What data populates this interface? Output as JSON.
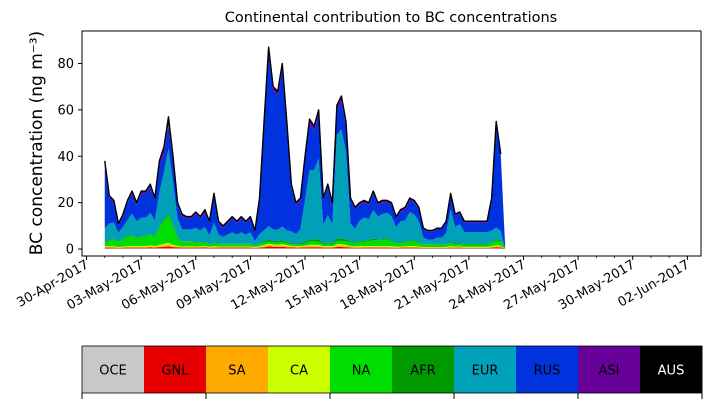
{
  "chart_data": {
    "type": "area",
    "title": "Continental contribution to BC concentrations",
    "ylabel": "BC concentration (ng m⁻³)",
    "xlabel": "",
    "date_ticks": [
      "30-Apr-2017",
      "03-May-2017",
      "06-May-2017",
      "09-May-2017",
      "12-May-2017",
      "15-May-2017",
      "18-May-2017",
      "21-May-2017",
      "24-May-2017",
      "27-May-2017",
      "30-May-2017",
      "02-Jun-2017"
    ],
    "x_start": "2017-05-01",
    "x_range": [
      "2017-04-29T18:00",
      "2017-06-02T18:00"
    ],
    "ylim": [
      -3,
      94
    ],
    "y_ticks": [
      0,
      20,
      40,
      60,
      80
    ],
    "x": [
      "2017-05-01T00:00",
      "2017-05-01T06:00",
      "2017-05-01T12:00",
      "2017-05-01T18:00",
      "2017-05-02T00:00",
      "2017-05-02T06:00",
      "2017-05-02T12:00",
      "2017-05-02T18:00",
      "2017-05-03T00:00",
      "2017-05-03T06:00",
      "2017-05-03T12:00",
      "2017-05-03T18:00",
      "2017-05-04T00:00",
      "2017-05-04T06:00",
      "2017-05-04T12:00",
      "2017-05-04T18:00",
      "2017-05-05T00:00",
      "2017-05-05T06:00",
      "2017-05-05T12:00",
      "2017-05-05T18:00",
      "2017-05-06T00:00",
      "2017-05-06T06:00",
      "2017-05-06T12:00",
      "2017-05-06T18:00",
      "2017-05-07T00:00",
      "2017-05-07T06:00",
      "2017-05-07T12:00",
      "2017-05-07T18:00",
      "2017-05-08T00:00",
      "2017-05-08T06:00",
      "2017-05-08T12:00",
      "2017-05-08T18:00",
      "2017-05-09T00:00",
      "2017-05-09T06:00",
      "2017-05-09T12:00",
      "2017-05-09T18:00",
      "2017-05-10T00:00",
      "2017-05-10T06:00",
      "2017-05-10T12:00",
      "2017-05-10T18:00",
      "2017-05-11T00:00",
      "2017-05-11T06:00",
      "2017-05-11T12:00",
      "2017-05-11T18:00",
      "2017-05-12T00:00",
      "2017-05-12T06:00",
      "2017-05-12T12:00",
      "2017-05-12T18:00",
      "2017-05-13T00:00",
      "2017-05-13T06:00",
      "2017-05-13T12:00",
      "2017-05-13T18:00",
      "2017-05-14T00:00",
      "2017-05-14T06:00",
      "2017-05-14T12:00",
      "2017-05-14T18:00",
      "2017-05-15T00:00",
      "2017-05-15T06:00",
      "2017-05-15T12:00",
      "2017-05-15T18:00",
      "2017-05-16T00:00",
      "2017-05-16T06:00",
      "2017-05-16T12:00",
      "2017-05-16T18:00",
      "2017-05-17T00:00",
      "2017-05-17T06:00",
      "2017-05-17T12:00",
      "2017-05-17T18:00",
      "2017-05-18T00:00",
      "2017-05-18T06:00",
      "2017-05-18T12:00",
      "2017-05-18T18:00",
      "2017-05-19T00:00",
      "2017-05-19T06:00",
      "2017-05-19T12:00",
      "2017-05-19T18:00",
      "2017-05-20T00:00",
      "2017-05-20T06:00",
      "2017-05-20T12:00",
      "2017-05-20T18:00",
      "2017-05-21T00:00",
      "2017-05-21T06:00",
      "2017-05-21T12:00",
      "2017-05-21T18:00",
      "2017-05-22T00:00",
      "2017-05-22T06:00",
      "2017-05-22T12:00",
      "2017-05-22T18:00",
      "2017-05-23T00:00",
      "2017-05-23T06:00",
      "2017-05-23T12:00",
      "2017-05-23T18:00",
      "2017-05-24T00:00",
      "2017-05-24T06:00",
      "2017-05-24T12:00",
      "2017-05-24T18:00",
      "2017-05-25T00:00",
      "2017-05-25T06:00",
      "2017-05-25T12:00",
      "2017-05-25T18:00",
      "2017-05-26T00:00",
      "2017-05-26T06:00",
      "2017-05-26T12:00",
      "2017-05-26T18:00",
      "2017-05-27T00:00",
      "2017-05-27T06:00",
      "2017-05-27T12:00",
      "2017-05-27T18:00",
      "2017-05-28T00:00",
      "2017-05-28T06:00",
      "2017-05-28T12:00",
      "2017-05-28T18:00",
      "2017-05-29T00:00",
      "2017-05-29T06:00",
      "2017-05-29T12:00",
      "2017-05-29T18:00",
      "2017-05-30T00:00",
      "2017-05-30T06:00",
      "2017-05-30T12:00",
      "2017-05-30T18:00",
      "2017-05-31T00:00",
      "2017-05-31T06:00",
      "2017-05-31T12:00",
      "2017-05-31T18:00",
      "2017-06-01T00:00",
      "2017-06-01T06:00",
      "2017-06-01T12:00",
      "2017-06-01T18:00"
    ],
    "total": [
      38,
      23,
      21,
      11,
      15,
      21,
      25,
      20,
      25,
      25,
      28,
      22,
      38,
      44,
      57,
      40,
      20,
      15,
      14,
      14,
      16,
      14,
      17,
      12,
      24,
      12,
      10,
      12,
      14,
      12,
      14,
      12,
      14,
      8,
      22,
      55,
      87,
      70,
      68,
      80,
      55,
      28,
      20,
      22,
      40,
      56,
      53,
      60,
      22,
      28,
      20,
      62,
      66,
      55,
      22,
      18,
      20,
      21,
      20,
      25,
      20,
      21,
      21,
      20,
      14,
      17,
      18,
      22,
      21,
      18,
      9,
      8,
      8,
      9,
      9,
      12,
      24,
      15,
      16,
      12,
      12,
      12,
      12,
      12,
      12,
      22,
      55,
      41
    ],
    "stack": {
      "OCE": [
        0.3,
        0.3,
        0.3,
        0.3,
        0.3,
        0.3,
        0.3,
        0.3,
        0.3,
        0.3,
        0.3,
        0.3,
        0.3,
        0.3,
        0.3,
        0.3,
        0.3,
        0.3,
        0.3,
        0.3,
        0.3,
        0.3,
        0.3,
        0.3,
        0.3,
        0.3,
        0.3,
        0.3,
        0.3,
        0.3,
        0.3,
        0.3,
        0.3,
        0.3,
        0.3,
        0.3,
        0.3,
        0.3,
        0.3,
        0.3,
        0.3,
        0.3,
        0.3,
        0.3,
        0.3,
        0.3,
        0.3,
        0.3,
        0.3,
        0.3,
        0.3,
        0.3,
        0.3,
        0.3,
        0.3,
        0.3,
        0.3,
        0.3,
        0.3,
        0.3,
        0.3,
        0.3,
        0.3,
        0.3,
        0.3,
        0.3,
        0.3,
        0.3,
        0.3,
        0.3,
        0.3,
        0.3,
        0.3,
        0.3,
        0.3,
        0.3,
        0.3,
        0.3,
        0.3,
        0.3,
        0.3,
        0.3,
        0.3,
        0.3,
        0.3,
        0.3,
        0.3,
        0.3
      ],
      "GNL": [
        0.3,
        0.3,
        0.3,
        0.2,
        0.3,
        0.3,
        0.3,
        0.3,
        0.3,
        0.3,
        0.4,
        0.3,
        0.5,
        0.6,
        0.8,
        0.5,
        0.4,
        0.3,
        0.3,
        0.3,
        0.3,
        0.3,
        0.3,
        0.3,
        0.3,
        0.3,
        0.3,
        0.3,
        0.3,
        0.3,
        0.3,
        0.3,
        0.3,
        0.2,
        0.3,
        0.5,
        0.8,
        0.7,
        0.6,
        0.7,
        0.5,
        0.4,
        0.3,
        0.3,
        0.4,
        0.5,
        0.5,
        0.5,
        0.3,
        0.3,
        0.3,
        0.6,
        0.6,
        0.5,
        0.3,
        0.3,
        0.3,
        0.3,
        0.3,
        0.3,
        0.3,
        0.3,
        0.3,
        0.3,
        0.2,
        0.3,
        0.3,
        0.3,
        0.3,
        0.3,
        0.2,
        0.2,
        0.2,
        0.2,
        0.2,
        0.2,
        0.3,
        0.2,
        0.3,
        0.2,
        0.2,
        0.2,
        0.2,
        0.2,
        0.2,
        0.3,
        0.5,
        0.4
      ],
      "SA": [
        0.4,
        0.3,
        0.3,
        0.2,
        0.3,
        0.3,
        0.4,
        0.3,
        0.4,
        0.4,
        0.5,
        0.4,
        0.6,
        0.8,
        1.0,
        0.6,
        0.4,
        0.3,
        0.3,
        0.3,
        0.3,
        0.3,
        0.3,
        0.3,
        0.4,
        0.3,
        0.3,
        0.3,
        0.3,
        0.3,
        0.3,
        0.3,
        0.3,
        0.2,
        0.3,
        0.5,
        0.7,
        0.6,
        0.6,
        0.6,
        0.5,
        0.4,
        0.3,
        0.3,
        0.4,
        0.6,
        0.6,
        0.6,
        0.3,
        0.4,
        0.3,
        0.6,
        0.7,
        0.6,
        0.4,
        0.3,
        0.4,
        0.4,
        0.4,
        0.4,
        0.4,
        0.4,
        0.4,
        0.4,
        0.3,
        0.3,
        0.3,
        0.4,
        0.4,
        0.3,
        0.2,
        0.2,
        0.2,
        0.2,
        0.2,
        0.2,
        0.4,
        0.3,
        0.3,
        0.2,
        0.2,
        0.2,
        0.2,
        0.2,
        0.2,
        0.3,
        0.5,
        0.4
      ],
      "CA": [
        0.3,
        0.3,
        0.3,
        0.2,
        0.2,
        0.3,
        0.3,
        0.3,
        0.3,
        0.3,
        0.4,
        0.3,
        0.4,
        0.5,
        0.6,
        0.4,
        0.3,
        0.2,
        0.2,
        0.2,
        0.2,
        0.2,
        0.3,
        0.2,
        0.3,
        0.2,
        0.2,
        0.2,
        0.2,
        0.2,
        0.2,
        0.2,
        0.2,
        0.2,
        0.3,
        0.4,
        0.5,
        0.4,
        0.4,
        0.5,
        0.4,
        0.3,
        0.3,
        0.3,
        0.3,
        0.4,
        0.4,
        0.4,
        0.3,
        0.3,
        0.3,
        0.5,
        0.5,
        0.4,
        0.3,
        0.3,
        0.3,
        0.3,
        0.3,
        0.3,
        0.3,
        0.3,
        0.3,
        0.3,
        0.2,
        0.2,
        0.2,
        0.3,
        0.3,
        0.2,
        0.2,
        0.2,
        0.2,
        0.2,
        0.2,
        0.2,
        0.3,
        0.2,
        0.2,
        0.2,
        0.2,
        0.2,
        0.2,
        0.2,
        0.2,
        0.3,
        0.4,
        0.3
      ],
      "NA": [
        1.5,
        2.5,
        3.0,
        2.0,
        3.5,
        4.0,
        4.5,
        3.5,
        4.0,
        4.0,
        5.0,
        4.0,
        7.0,
        10.0,
        12.0,
        8.0,
        3.5,
        2.0,
        2.0,
        2.0,
        2.0,
        1.5,
        1.5,
        1.0,
        1.5,
        1.0,
        1.0,
        1.0,
        1.0,
        1.0,
        1.0,
        1.0,
        1.0,
        0.5,
        1.0,
        1.0,
        1.0,
        1.0,
        1.0,
        1.0,
        1.0,
        0.8,
        0.8,
        0.8,
        1.0,
        1.5,
        1.5,
        1.5,
        1.0,
        1.0,
        1.0,
        1.5,
        1.5,
        1.5,
        1.5,
        1.5,
        2.0,
        2.0,
        2.0,
        2.5,
        2.5,
        2.5,
        3.0,
        2.0,
        1.5,
        1.5,
        1.5,
        2.0,
        2.0,
        1.5,
        1.0,
        1.0,
        1.0,
        1.0,
        1.0,
        1.0,
        1.5,
        1.0,
        1.0,
        1.0,
        1.0,
        1.0,
        1.0,
        1.0,
        1.0,
        1.5,
        2.0,
        2.0
      ],
      "AFR": [
        0.2,
        0.3,
        0.3,
        0.2,
        0.3,
        0.3,
        0.3,
        0.3,
        0.3,
        0.3,
        0.4,
        0.3,
        0.5,
        0.7,
        0.9,
        0.6,
        0.3,
        0.2,
        0.2,
        0.2,
        0.2,
        0.2,
        0.2,
        0.2,
        0.3,
        0.2,
        0.2,
        0.2,
        0.2,
        0.2,
        0.2,
        0.2,
        0.2,
        0.1,
        0.3,
        0.5,
        0.8,
        0.6,
        0.6,
        0.7,
        0.5,
        0.4,
        0.3,
        0.4,
        0.6,
        0.9,
        0.9,
        1.0,
        0.4,
        0.5,
        0.4,
        1.0,
        1.1,
        0.9,
        0.4,
        0.3,
        0.4,
        0.5,
        0.5,
        0.6,
        0.5,
        0.5,
        0.5,
        0.4,
        0.3,
        0.3,
        0.3,
        0.4,
        0.4,
        0.3,
        0.2,
        0.2,
        0.2,
        0.2,
        0.2,
        0.2,
        0.4,
        0.3,
        0.3,
        0.2,
        0.2,
        0.2,
        0.2,
        0.2,
        0.2,
        0.3,
        0.6,
        0.5
      ],
      "EUR": [
        6,
        7,
        7,
        4,
        5,
        7,
        9,
        7,
        8,
        8,
        9,
        7,
        15,
        20,
        28,
        18,
        8,
        5,
        5,
        5,
        6,
        5,
        6,
        4,
        9,
        4,
        3,
        4,
        5,
        4,
        5,
        4,
        5,
        2,
        4,
        5,
        6,
        5,
        5,
        6,
        5,
        5,
        4,
        6,
        18,
        30,
        30,
        35,
        8,
        12,
        8,
        45,
        47,
        38,
        8,
        6,
        9,
        10,
        9,
        12,
        10,
        11,
        11,
        11,
        7,
        9,
        9,
        12,
        11,
        9,
        3,
        2,
        2,
        3,
        3,
        5,
        14,
        7,
        8,
        5,
        5,
        5,
        5,
        5,
        5,
        5,
        5,
        4
      ],
      "RUS": [
        27,
        11,
        8.5,
        3.5,
        4.5,
        7.5,
        8.5,
        7.0,
        10.3,
        10.3,
        11.3,
        8.8,
        11.0,
        8.0,
        10.0,
        9.0,
        5.5,
        5.5,
        4.5,
        4.5,
        6.0,
        5.0,
        6.0,
        5.5,
        12.0,
        5.0,
        4.0,
        5.0,
        6.0,
        5.0,
        6.0,
        5.0,
        6.0,
        4.0,
        14.0,
        46.0,
        76.0,
        61.0,
        59.0,
        69.0,
        46.0,
        19.0,
        12.0,
        12.0,
        17.0,
        20.0,
        17.0,
        19.0,
        10.5,
        12.0,
        8.0,
        11.0,
        12.0,
        11.0,
        10.0,
        8.5,
        7.0,
        6.5,
        6.0,
        7.0,
        5.0,
        5.0,
        4.5,
        5.0,
        4.0,
        4.0,
        4.5,
        5.0,
        5.0,
        5.0,
        3.5,
        3.5,
        3.5,
        3.7,
        3.7,
        4.5,
        6.0,
        4.5,
        4.5,
        4.0,
        4.0,
        4.0,
        4.0,
        4.0,
        4.0,
        13.0,
        44.5,
        32.5
      ],
      "ASI": [
        1.5,
        0.8,
        0.8,
        0.5,
        0.8,
        0.8,
        1.0,
        0.8,
        1.0,
        1.0,
        1.2,
        0.9,
        2.0,
        2.5,
        3.5,
        2.0,
        1.0,
        0.8,
        0.8,
        0.8,
        0.8,
        0.8,
        1.0,
        0.8,
        1.2,
        0.8,
        0.7,
        0.8,
        0.8,
        0.8,
        0.8,
        0.8,
        0.8,
        0.6,
        1.2,
        1.5,
        1.8,
        1.5,
        1.5,
        1.8,
        1.5,
        1.2,
        1.0,
        1.0,
        1.6,
        1.8,
        1.8,
        1.8,
        1.0,
        1.2,
        1.0,
        1.6,
        2.0,
        1.8,
        1.0,
        0.8,
        0.8,
        0.8,
        0.8,
        0.8,
        0.8,
        0.8,
        0.8,
        0.8,
        0.5,
        0.8,
        0.8,
        0.8,
        0.8,
        0.8,
        0.5,
        0.5,
        0.5,
        0.5,
        0.5,
        0.6,
        0.8,
        0.6,
        0.6,
        0.5,
        0.5,
        0.5,
        0.5,
        0.5,
        0.5,
        0.8,
        1.0,
        0.8
      ],
      "AUS": [
        0.5,
        0.2,
        0.2,
        0.1,
        0.2,
        0.2,
        0.2,
        0.2,
        0.2,
        0.2,
        0.2,
        0.2,
        0.3,
        0.3,
        0.4,
        0.3,
        0.2,
        0.1,
        0.1,
        0.1,
        0.1,
        0.1,
        0.1,
        0.1,
        0.2,
        0.1,
        0.1,
        0.1,
        0.1,
        0.1,
        0.1,
        0.1,
        0.1,
        0.1,
        0.2,
        0.3,
        0.4,
        0.3,
        0.3,
        0.4,
        0.3,
        0.2,
        0.2,
        0.2,
        0.2,
        0.3,
        0.3,
        0.3,
        0.2,
        0.2,
        0.2,
        0.3,
        0.3,
        0.3,
        0.2,
        0.2,
        0.2,
        0.2,
        0.2,
        0.2,
        0.2,
        0.2,
        0.2,
        0.2,
        0.1,
        0.2,
        0.2,
        0.2,
        0.2,
        0.2,
        0.1,
        0.1,
        0.1,
        0.1,
        0.1,
        0.1,
        0.2,
        0.1,
        0.1,
        0.1,
        0.1,
        0.1,
        0.1,
        0.1,
        0.1,
        0.2,
        0.2,
        0.2
      ]
    },
    "regions": [
      {
        "code": "OCE",
        "color": "#c8c8c8",
        "text_color": "#000000"
      },
      {
        "code": "GNL",
        "color": "#e60000",
        "text_color": "#000000"
      },
      {
        "code": "SA",
        "color": "#ffaa00",
        "text_color": "#000000"
      },
      {
        "code": "CA",
        "color": "#ccff00",
        "text_color": "#000000"
      },
      {
        "code": "NA",
        "color": "#00dd00",
        "text_color": "#000000"
      },
      {
        "code": "AFR",
        "color": "#009900",
        "text_color": "#000000"
      },
      {
        "code": "EUR",
        "color": "#00a0b8",
        "text_color": "#000000"
      },
      {
        "code": "RUS",
        "color": "#0033dd",
        "text_color": "#000000"
      },
      {
        "code": "ASI",
        "color": "#660099",
        "text_color": "#000000"
      },
      {
        "code": "AUS",
        "color": "#000000",
        "text_color": "#ffffff"
      }
    ],
    "legend_placement": "bottom color bar",
    "grid": false
  }
}
